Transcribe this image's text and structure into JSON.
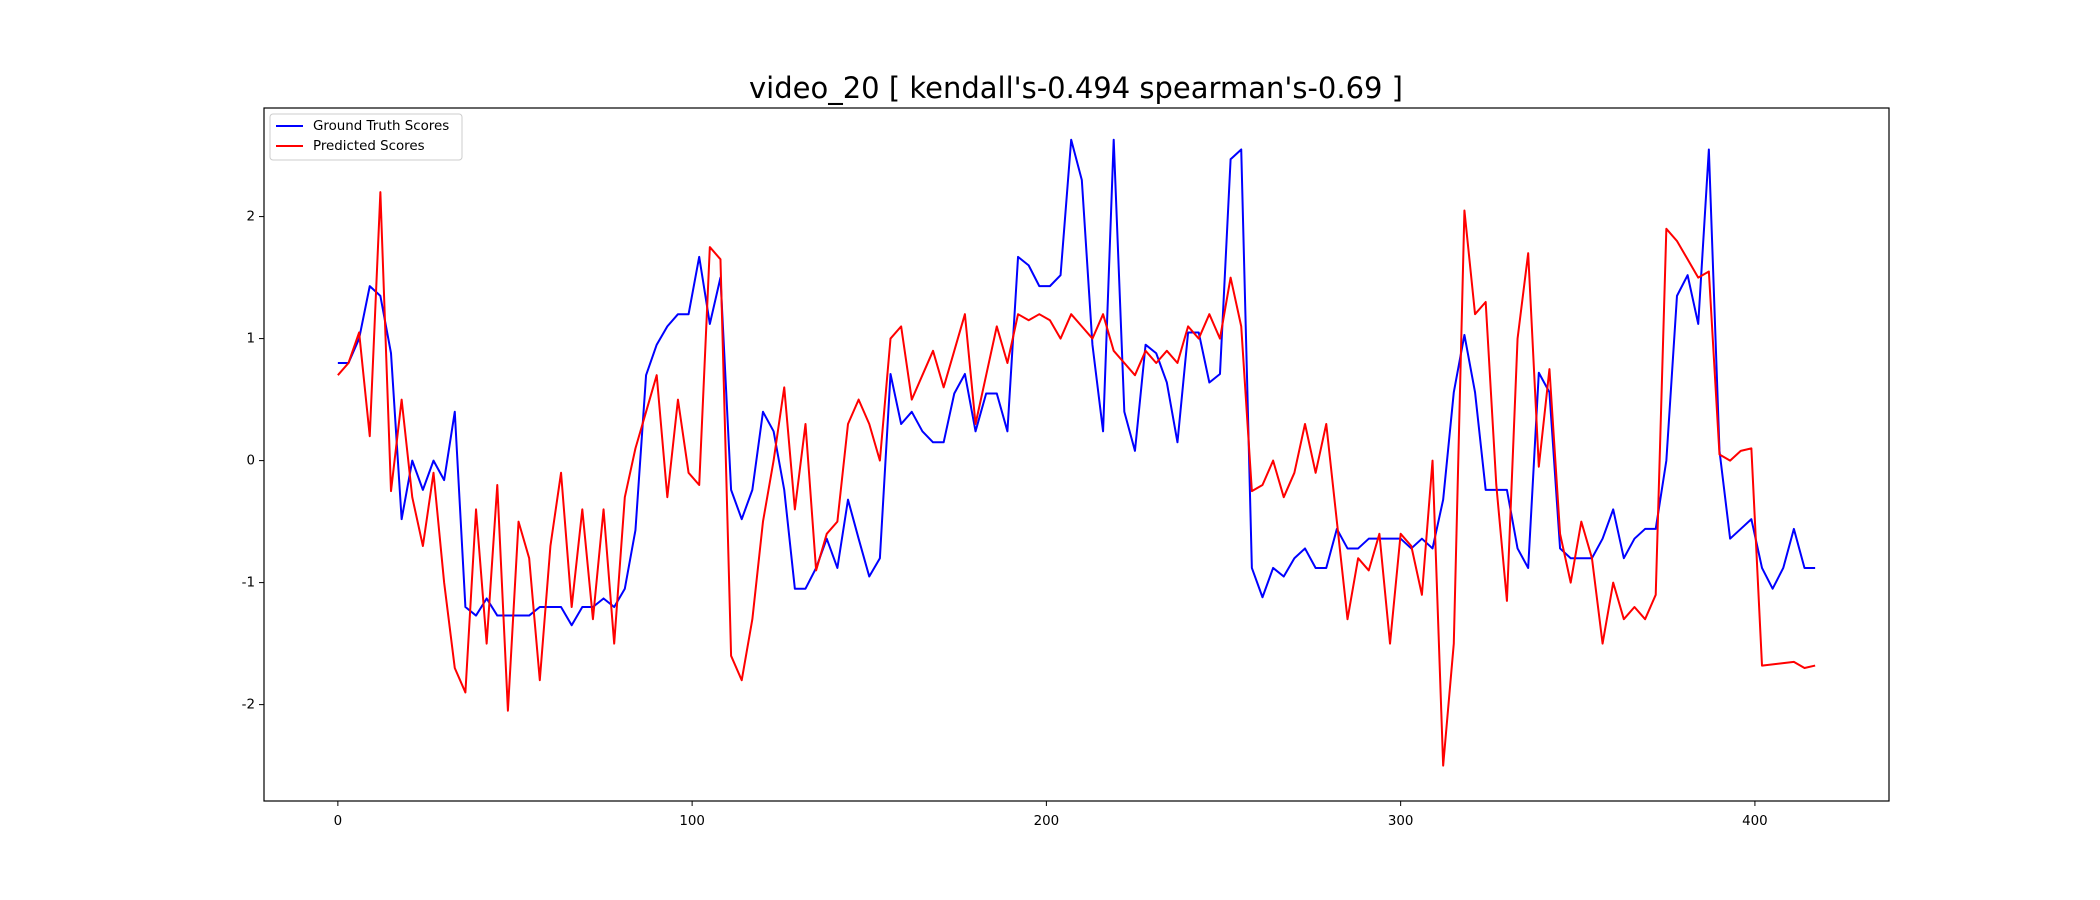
{
  "chart_data": {
    "type": "line",
    "title": "video_20 [ kendall's-0.494 spearman's-0.69 ]",
    "x": [
      0,
      3,
      6,
      9,
      12,
      15,
      18,
      21,
      24,
      27,
      30,
      33,
      36,
      39,
      42,
      45,
      48,
      51,
      54,
      57,
      60,
      63,
      66,
      69,
      72,
      75,
      78,
      81,
      84,
      87,
      90,
      93,
      96,
      99,
      102,
      105,
      108,
      111,
      114,
      117,
      120,
      123,
      126,
      129,
      132,
      135,
      138,
      141,
      144,
      147,
      150,
      153,
      156,
      159,
      162,
      165,
      168,
      171,
      174,
      177,
      180,
      183,
      186,
      189,
      192,
      195,
      198,
      201,
      204,
      207,
      210,
      213,
      216,
      219,
      222,
      225,
      228,
      231,
      234,
      237,
      240,
      243,
      246,
      249,
      252,
      255,
      258,
      261,
      264,
      267,
      270,
      273,
      276,
      279,
      282,
      285,
      288,
      291,
      294,
      297,
      300,
      303,
      306,
      309,
      312,
      315,
      318,
      321,
      324,
      327,
      330,
      333,
      336,
      339,
      342,
      345,
      348,
      351,
      354,
      357,
      360,
      363,
      366,
      369,
      372,
      375,
      378,
      381,
      384,
      387,
      390,
      393,
      396,
      399,
      402,
      405,
      408,
      411,
      414,
      417
    ],
    "series": [
      {
        "name": "Ground Truth Scores",
        "color": "#0000ff",
        "values": [
          0.8,
          0.8,
          1.0,
          1.43,
          1.35,
          0.88,
          -0.48,
          0,
          -0.24,
          0,
          -0.16,
          0.4,
          -1.2,
          -1.27,
          -1.13,
          -1.27,
          -1.27,
          -1.27,
          -1.27,
          -1.2,
          -1.2,
          -1.2,
          -1.35,
          -1.2,
          -1.2,
          -1.13,
          -1.2,
          -1.05,
          -0.57,
          0.7,
          0.95,
          1.1,
          1.2,
          1.2,
          1.67,
          1.12,
          1.5,
          -0.24,
          -0.48,
          -0.24,
          0.4,
          0.24,
          -0.24,
          -1.05,
          -1.05,
          -0.88,
          -0.64,
          -0.88,
          -0.32,
          -0.64,
          -0.95,
          -0.8,
          0.71,
          0.3,
          0.4,
          0.24,
          0.15,
          0.15,
          0.55,
          0.71,
          0.24,
          0.55,
          0.55,
          0.24,
          1.67,
          1.6,
          1.43,
          1.43,
          1.52,
          2.63,
          2.3,
          0.95,
          0.24,
          2.63,
          0.4,
          0.08,
          0.95,
          0.88,
          0.64,
          0.15,
          1.05,
          1.05,
          0.64,
          0.71,
          2.47,
          2.55,
          -0.88,
          -1.12,
          -0.88,
          -0.95,
          -0.8,
          -0.72,
          -0.88,
          -0.88,
          -0.56,
          -0.72,
          -0.72,
          -0.64,
          -0.64,
          -0.64,
          -0.64,
          -0.72,
          -0.64,
          -0.72,
          -0.32,
          0.56,
          1.03,
          0.56,
          -0.24,
          -0.24,
          -0.24,
          -0.72,
          -0.88,
          0.72,
          0.56,
          -0.72,
          -0.8,
          -0.8,
          -0.8,
          -0.64,
          -0.4,
          -0.8,
          -0.64,
          -0.56,
          -0.56,
          0,
          1.35,
          1.52,
          1.12,
          2.55,
          0.08,
          -0.64,
          -0.56,
          -0.48,
          -0.88,
          -1.05,
          -0.88,
          -0.56,
          -0.88,
          -0.88
        ]
      },
      {
        "name": "Predicted Scores",
        "color": "#ff0000",
        "values": [
          0.7,
          0.8,
          1.05,
          0.2,
          2.2,
          -0.25,
          0.5,
          -0.3,
          -0.7,
          -0.1,
          -1.0,
          -1.7,
          -1.9,
          -0.4,
          -1.5,
          -0.2,
          -2.05,
          -0.5,
          -0.8,
          -1.8,
          -0.7,
          -0.1,
          -1.2,
          -0.4,
          -1.3,
          -0.4,
          -1.5,
          -0.3,
          0.1,
          0.4,
          0.7,
          -0.3,
          0.5,
          -0.1,
          -0.2,
          1.75,
          1.65,
          -1.6,
          -1.8,
          -1.3,
          -0.5,
          0.0,
          0.6,
          -0.4,
          0.3,
          -0.9,
          -0.6,
          -0.5,
          0.3,
          0.5,
          0.3,
          0.0,
          1.0,
          1.1,
          0.5,
          0.7,
          0.9,
          0.6,
          0.9,
          1.2,
          0.3,
          0.7,
          1.1,
          0.8,
          1.2,
          1.15,
          1.2,
          1.15,
          1.0,
          1.2,
          1.1,
          1.0,
          1.2,
          0.9,
          0.8,
          0.7,
          0.9,
          0.8,
          0.9,
          0.8,
          1.1,
          1.0,
          1.2,
          1.0,
          1.5,
          1.1,
          -0.25,
          -0.2,
          0.0,
          -0.3,
          -0.1,
          0.3,
          -0.1,
          0.3,
          -0.5,
          -1.3,
          -0.8,
          -0.9,
          -0.6,
          -1.5,
          -0.6,
          -0.7,
          -1.1,
          0.0,
          -2.5,
          -1.5,
          2.05,
          1.2,
          1.3,
          -0.2,
          -1.15,
          1.0,
          1.7,
          -0.05,
          0.75,
          -0.6,
          -1.0,
          -0.5,
          -0.8,
          -1.5,
          -1.0,
          -1.3,
          -1.2,
          -1.3,
          -1.1,
          1.9,
          1.8,
          1.65,
          1.5,
          1.55,
          0.05,
          0.0,
          0.08,
          0.1,
          -1.68,
          -1.67,
          -1.66,
          -1.65,
          -1.7,
          -1.68
        ]
      }
    ],
    "xlim": [
      -20.85,
      437.85
    ],
    "ylim": [
      -2.79,
      2.89
    ],
    "xticks": [
      0,
      100,
      200,
      300,
      400
    ],
    "yticks": [
      -2,
      -1,
      0,
      1,
      2
    ],
    "legend": "upper left"
  }
}
